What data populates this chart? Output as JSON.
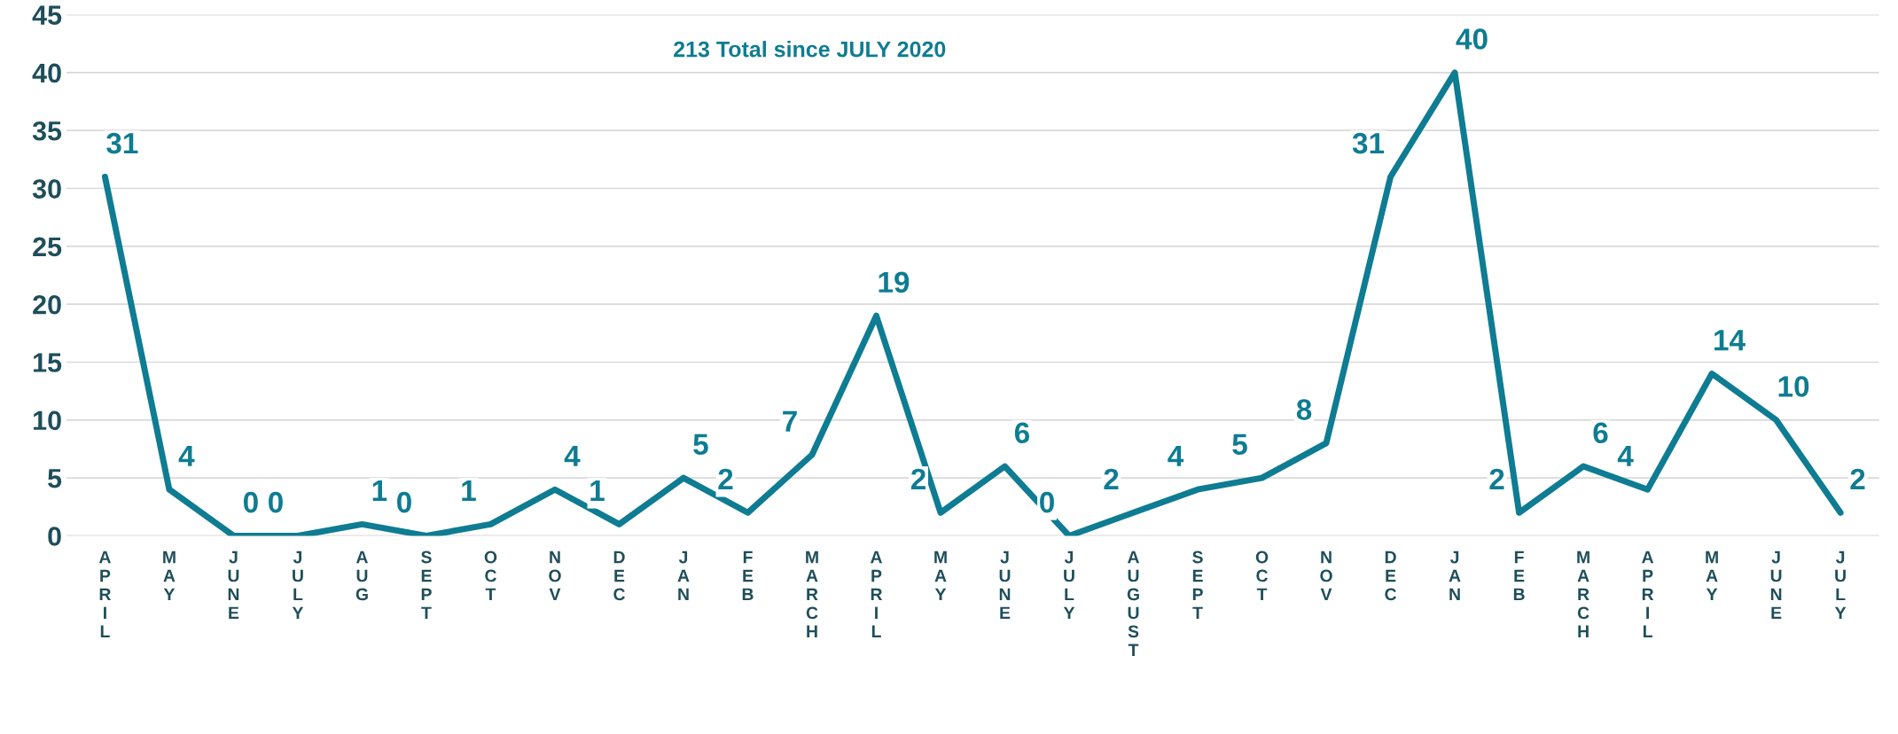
{
  "chart_data": {
    "type": "line",
    "categories": [
      "APRIL",
      "MAY",
      "JUNE",
      "JULY",
      "AUG",
      "SEPT",
      "OCT",
      "NOV",
      "DEC",
      "JAN",
      "FEB",
      "MARCH",
      "APRIL",
      "MAY",
      "JUNE",
      "JULY",
      "AUGUST",
      "SEPT",
      "OCT",
      "NOV",
      "DEC",
      "JAN",
      "FEB",
      "MARCH",
      "APRIL",
      "MAY",
      "JUNE",
      "JULY"
    ],
    "series": [
      {
        "color": "#0e7c92",
        "values": [
          31,
          4,
          0,
          0,
          1,
          0,
          1,
          4,
          1,
          5,
          2,
          7,
          19,
          2,
          6,
          0,
          2,
          4,
          5,
          8,
          31,
          40,
          2,
          6,
          4,
          14,
          10,
          2
        ]
      }
    ],
    "ylim": [
      0,
      45
    ],
    "yticks": [
      0,
      5,
      10,
      15,
      20,
      25,
      30,
      35,
      40,
      45
    ],
    "grid": "y",
    "data_labels": true,
    "marker": "none",
    "line_style": "solid",
    "legend": false,
    "annotations": [
      "213 Total since JULY 2020"
    ]
  }
}
